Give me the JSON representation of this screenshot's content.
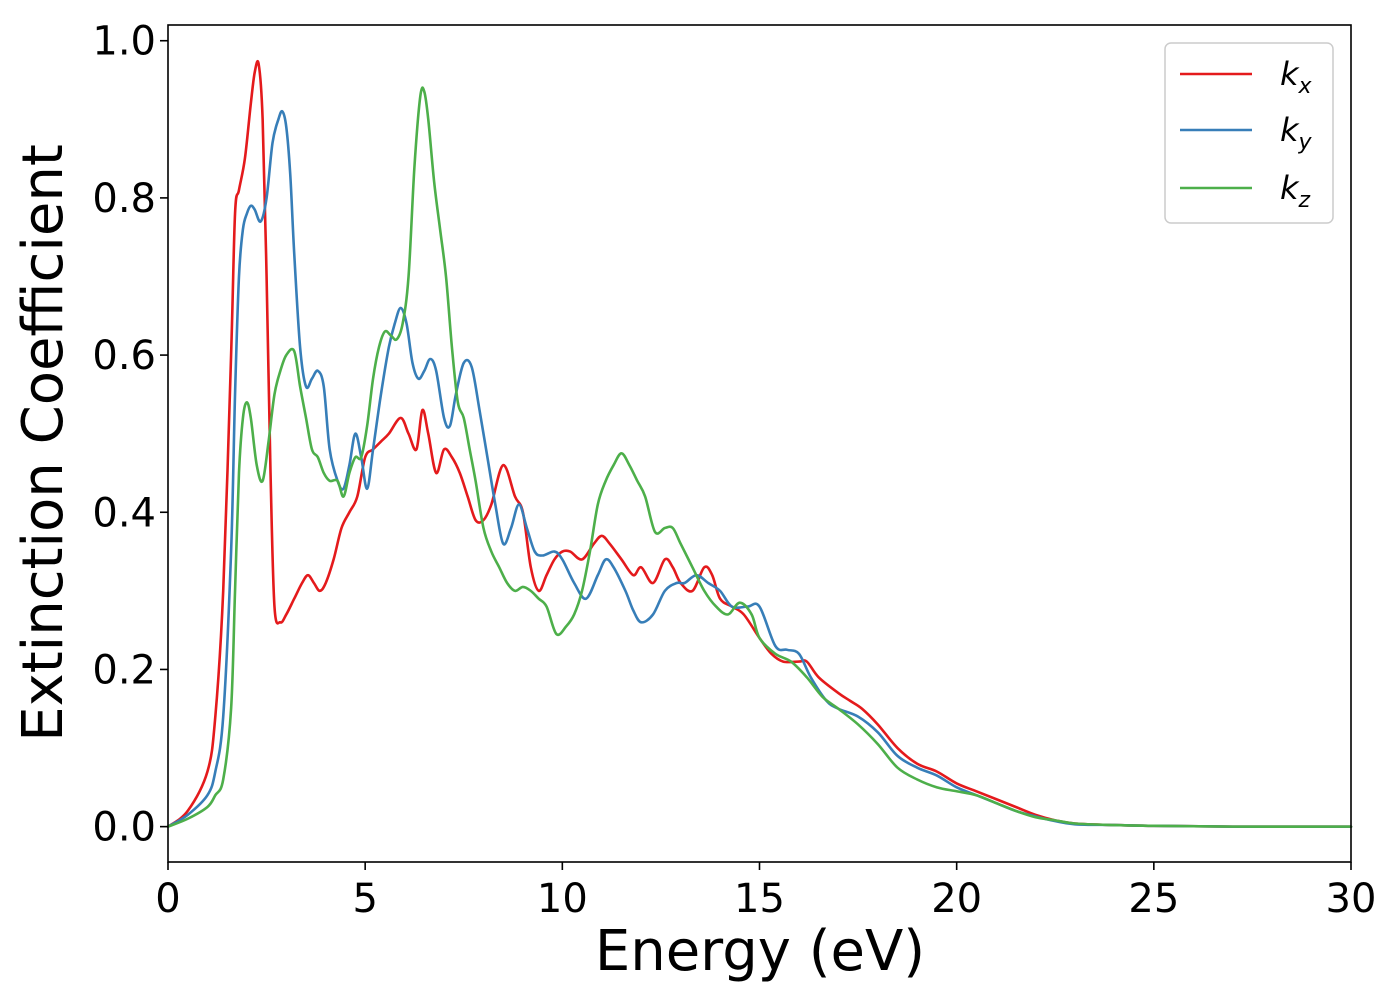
{
  "chart_data": {
    "type": "line",
    "title": "",
    "xlabel": "Energy (eV)",
    "ylabel": "Extinction Coefficient",
    "xlim": [
      0,
      30
    ],
    "ylim": [
      -0.045,
      1.02
    ],
    "xticks": [
      0,
      5,
      10,
      15,
      20,
      25,
      30
    ],
    "xtick_labels": [
      "0",
      "5",
      "10",
      "15",
      "20",
      "25",
      "30"
    ],
    "yticks": [
      0.0,
      0.2,
      0.4,
      0.6,
      0.8,
      1.0
    ],
    "ytick_labels": [
      "0.0",
      "0.2",
      "0.4",
      "0.6",
      "0.8",
      "1.0"
    ],
    "grid": false,
    "legend_position": "top-right",
    "series": [
      {
        "name": "k",
        "subscript": "x",
        "color": "#e41a1c",
        "x": [
          0,
          0.5,
          1.0,
          1.2,
          1.4,
          1.6,
          1.7,
          1.8,
          1.95,
          2.1,
          2.2,
          2.3,
          2.4,
          2.5,
          2.6,
          2.7,
          2.85,
          3.0,
          3.2,
          3.4,
          3.55,
          3.7,
          3.85,
          4.0,
          4.2,
          4.4,
          4.6,
          4.8,
          5.0,
          5.2,
          5.4,
          5.6,
          5.9,
          6.1,
          6.3,
          6.45,
          6.6,
          6.8,
          7.0,
          7.2,
          7.4,
          7.6,
          7.8,
          8.0,
          8.2,
          8.5,
          8.8,
          9.0,
          9.2,
          9.4,
          9.6,
          9.8,
          10.0,
          10.2,
          10.5,
          10.8,
          11.0,
          11.2,
          11.5,
          11.8,
          12.0,
          12.3,
          12.6,
          12.8,
          13.0,
          13.3,
          13.6,
          13.8,
          14.0,
          14.3,
          14.6,
          15.0,
          15.3,
          15.6,
          16.0,
          16.2,
          16.5,
          17.0,
          17.3,
          17.6,
          18.0,
          18.5,
          19.0,
          19.5,
          20.0,
          20.5,
          21.0,
          21.5,
          22.0,
          22.5,
          23.0,
          24.0,
          25.0,
          27.0,
          30.0
        ],
        "y": [
          0.0,
          0.02,
          0.07,
          0.14,
          0.3,
          0.6,
          0.78,
          0.81,
          0.85,
          0.92,
          0.96,
          0.97,
          0.9,
          0.7,
          0.45,
          0.28,
          0.26,
          0.27,
          0.29,
          0.31,
          0.32,
          0.31,
          0.3,
          0.31,
          0.34,
          0.38,
          0.4,
          0.42,
          0.47,
          0.48,
          0.49,
          0.5,
          0.52,
          0.5,
          0.48,
          0.53,
          0.5,
          0.45,
          0.48,
          0.47,
          0.45,
          0.42,
          0.39,
          0.39,
          0.41,
          0.46,
          0.42,
          0.4,
          0.33,
          0.3,
          0.32,
          0.34,
          0.35,
          0.35,
          0.34,
          0.36,
          0.37,
          0.36,
          0.34,
          0.32,
          0.33,
          0.31,
          0.34,
          0.33,
          0.31,
          0.3,
          0.33,
          0.32,
          0.29,
          0.28,
          0.27,
          0.24,
          0.22,
          0.21,
          0.21,
          0.21,
          0.19,
          0.17,
          0.16,
          0.15,
          0.13,
          0.1,
          0.08,
          0.07,
          0.055,
          0.045,
          0.035,
          0.025,
          0.015,
          0.008,
          0.004,
          0.002,
          0.001,
          0.0,
          0.0
        ]
      },
      {
        "name": "k",
        "subscript": "y",
        "color": "#377eb8",
        "x": [
          0,
          0.5,
          1.0,
          1.2,
          1.4,
          1.6,
          1.7,
          1.8,
          1.9,
          2.0,
          2.1,
          2.2,
          2.35,
          2.5,
          2.65,
          2.8,
          2.9,
          3.0,
          3.1,
          3.2,
          3.35,
          3.5,
          3.65,
          3.8,
          3.95,
          4.1,
          4.3,
          4.45,
          4.6,
          4.75,
          4.9,
          5.05,
          5.2,
          5.4,
          5.6,
          5.75,
          5.9,
          6.05,
          6.2,
          6.35,
          6.5,
          6.65,
          6.8,
          7.0,
          7.15,
          7.3,
          7.5,
          7.7,
          7.9,
          8.1,
          8.3,
          8.5,
          8.7,
          8.9,
          9.1,
          9.3,
          9.5,
          9.8,
          10.0,
          10.3,
          10.6,
          10.9,
          11.1,
          11.3,
          11.6,
          11.8,
          12.0,
          12.3,
          12.6,
          12.9,
          13.1,
          13.4,
          13.7,
          14.0,
          14.3,
          14.7,
          15.0,
          15.4,
          15.7,
          16.0,
          16.3,
          16.7,
          17.0,
          17.5,
          18.0,
          18.5,
          19.0,
          19.5,
          20.0,
          20.5,
          21.0,
          21.5,
          22.0,
          22.5,
          23.0,
          24.0,
          25.0,
          27.0,
          30.0
        ],
        "y": [
          0.0,
          0.015,
          0.04,
          0.07,
          0.14,
          0.35,
          0.55,
          0.7,
          0.76,
          0.78,
          0.79,
          0.785,
          0.77,
          0.8,
          0.87,
          0.9,
          0.91,
          0.89,
          0.83,
          0.73,
          0.61,
          0.56,
          0.57,
          0.58,
          0.56,
          0.48,
          0.44,
          0.43,
          0.46,
          0.5,
          0.47,
          0.43,
          0.48,
          0.55,
          0.61,
          0.64,
          0.66,
          0.64,
          0.59,
          0.57,
          0.58,
          0.595,
          0.58,
          0.52,
          0.51,
          0.55,
          0.59,
          0.585,
          0.53,
          0.47,
          0.41,
          0.36,
          0.38,
          0.41,
          0.38,
          0.35,
          0.345,
          0.35,
          0.34,
          0.31,
          0.29,
          0.32,
          0.34,
          0.33,
          0.3,
          0.275,
          0.26,
          0.27,
          0.3,
          0.31,
          0.31,
          0.32,
          0.31,
          0.3,
          0.28,
          0.28,
          0.28,
          0.23,
          0.225,
          0.22,
          0.19,
          0.16,
          0.15,
          0.14,
          0.12,
          0.09,
          0.075,
          0.065,
          0.05,
          0.04,
          0.03,
          0.02,
          0.013,
          0.007,
          0.003,
          0.002,
          0.001,
          0.0,
          0.0
        ]
      },
      {
        "name": "k",
        "subscript": "z",
        "color": "#4daf4a",
        "x": [
          0,
          0.5,
          1.0,
          1.2,
          1.4,
          1.6,
          1.7,
          1.8,
          1.9,
          2.0,
          2.1,
          2.25,
          2.4,
          2.55,
          2.7,
          2.85,
          3.0,
          3.2,
          3.35,
          3.5,
          3.65,
          3.8,
          3.95,
          4.1,
          4.3,
          4.45,
          4.6,
          4.75,
          4.9,
          5.05,
          5.2,
          5.35,
          5.5,
          5.65,
          5.8,
          5.95,
          6.1,
          6.25,
          6.4,
          6.5,
          6.6,
          6.75,
          6.9,
          7.05,
          7.2,
          7.35,
          7.5,
          7.65,
          7.8,
          8.0,
          8.2,
          8.4,
          8.6,
          8.8,
          9.0,
          9.2,
          9.4,
          9.6,
          9.85,
          10.1,
          10.3,
          10.5,
          10.7,
          10.9,
          11.1,
          11.3,
          11.5,
          11.7,
          11.9,
          12.1,
          12.35,
          12.6,
          12.8,
          13.0,
          13.3,
          13.6,
          13.9,
          14.2,
          14.5,
          14.8,
          15.0,
          15.4,
          15.8,
          16.2,
          16.6,
          17.0,
          17.5,
          18.0,
          18.5,
          19.0,
          19.5,
          20.0,
          20.5,
          21.0,
          21.5,
          22.0,
          22.5,
          23.0,
          24.0,
          25.0,
          27.0,
          30.0
        ],
        "y": [
          0.0,
          0.01,
          0.025,
          0.04,
          0.06,
          0.15,
          0.3,
          0.45,
          0.52,
          0.54,
          0.52,
          0.46,
          0.44,
          0.49,
          0.55,
          0.58,
          0.6,
          0.605,
          0.56,
          0.52,
          0.48,
          0.47,
          0.45,
          0.44,
          0.44,
          0.42,
          0.45,
          0.47,
          0.47,
          0.51,
          0.57,
          0.61,
          0.63,
          0.625,
          0.62,
          0.64,
          0.7,
          0.84,
          0.93,
          0.935,
          0.9,
          0.82,
          0.76,
          0.7,
          0.61,
          0.54,
          0.52,
          0.48,
          0.44,
          0.38,
          0.35,
          0.33,
          0.31,
          0.3,
          0.305,
          0.3,
          0.29,
          0.28,
          0.245,
          0.255,
          0.27,
          0.3,
          0.35,
          0.41,
          0.44,
          0.46,
          0.475,
          0.46,
          0.44,
          0.42,
          0.375,
          0.38,
          0.38,
          0.36,
          0.33,
          0.3,
          0.28,
          0.27,
          0.285,
          0.27,
          0.24,
          0.22,
          0.21,
          0.19,
          0.165,
          0.15,
          0.13,
          0.105,
          0.075,
          0.06,
          0.05,
          0.045,
          0.04,
          0.03,
          0.02,
          0.012,
          0.008,
          0.004,
          0.002,
          0.001,
          0.0,
          0.0
        ]
      }
    ]
  }
}
